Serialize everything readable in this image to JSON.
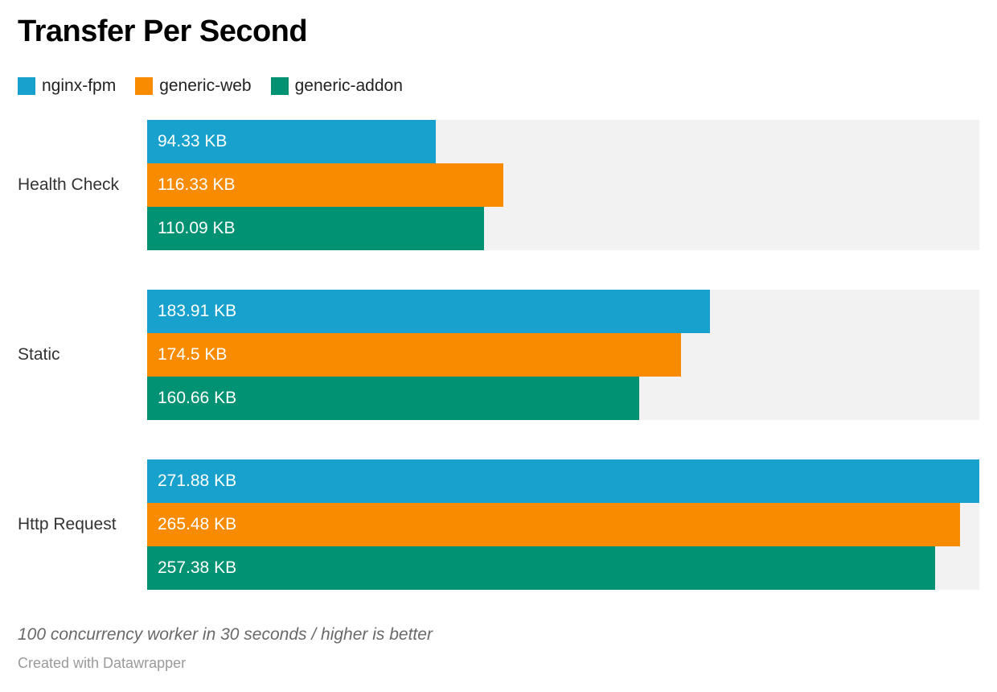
{
  "header": {
    "title": "Transfer Per Second"
  },
  "chart_data": {
    "type": "bar",
    "orientation": "horizontal",
    "title": "Transfer Per Second",
    "categories": [
      "Health Check",
      "Static",
      "Http Request"
    ],
    "series": [
      {
        "name": "nginx-fpm",
        "color": "#18a1cd",
        "values": [
          94.33,
          183.91,
          271.88
        ],
        "labels": [
          "94.33 KB",
          "183.91 KB",
          "271.88 KB"
        ]
      },
      {
        "name": "generic-web",
        "color": "#f98b00",
        "values": [
          116.33,
          174.5,
          265.48
        ],
        "labels": [
          "116.33 KB",
          "174.5 KB",
          "265.48 KB"
        ]
      },
      {
        "name": "generic-addon",
        "color": "#009273",
        "values": [
          110.09,
          160.66,
          257.38
        ],
        "labels": [
          "110.09 KB",
          "160.66 KB",
          "257.38 KB"
        ]
      }
    ],
    "unit": "KB",
    "xlim": [
      0,
      271.88
    ],
    "value_labels_inside_bars": true,
    "track_color": "#f2f2f2",
    "grid": false,
    "legend_position": "top-left"
  },
  "footer": {
    "note": "100 concurrency worker in 30 seconds / higher is better",
    "byline": "Created with Datawrapper"
  }
}
